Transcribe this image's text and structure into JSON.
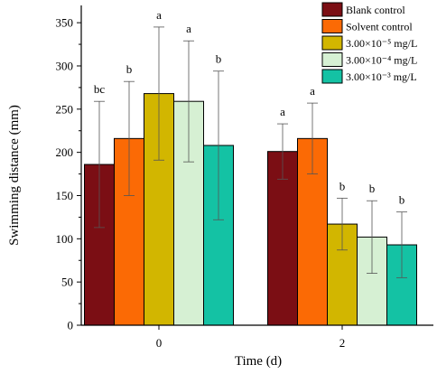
{
  "chart_data": {
    "type": "bar",
    "xlabel": "Time (d)",
    "ylabel": "Swimming distance (mm)",
    "ylim": [
      0,
      370
    ],
    "yticks": [
      0,
      50,
      100,
      150,
      200,
      250,
      300,
      350
    ],
    "categories": [
      "0",
      "2"
    ],
    "grid": false,
    "legend_position": "top-right",
    "error_bars": true,
    "series": [
      {
        "name": "Blank control",
        "color": "#7b0e14",
        "values": [
          186,
          201
        ],
        "errors": [
          73,
          32
        ],
        "labels": [
          "bc",
          "a"
        ]
      },
      {
        "name": "Solvent control",
        "color": "#fb6a05",
        "values": [
          216,
          216
        ],
        "errors": [
          66,
          41
        ],
        "labels": [
          "b",
          "a"
        ]
      },
      {
        "name": "3.00×10⁻⁵ mg/L",
        "color": "#d2b600",
        "values": [
          268,
          117
        ],
        "errors": [
          77,
          30
        ],
        "labels": [
          "a",
          "b"
        ]
      },
      {
        "name": "3.00×10⁻⁴ mg/L",
        "color": "#d6f0d3",
        "values": [
          259,
          102
        ],
        "errors": [
          70,
          42
        ],
        "labels": [
          "a",
          "b"
        ]
      },
      {
        "name": "3.00×10⁻³ mg/L",
        "color": "#14c2a4",
        "values": [
          208,
          93
        ],
        "errors": [
          86,
          38
        ],
        "labels": [
          "b",
          "b"
        ]
      }
    ]
  }
}
